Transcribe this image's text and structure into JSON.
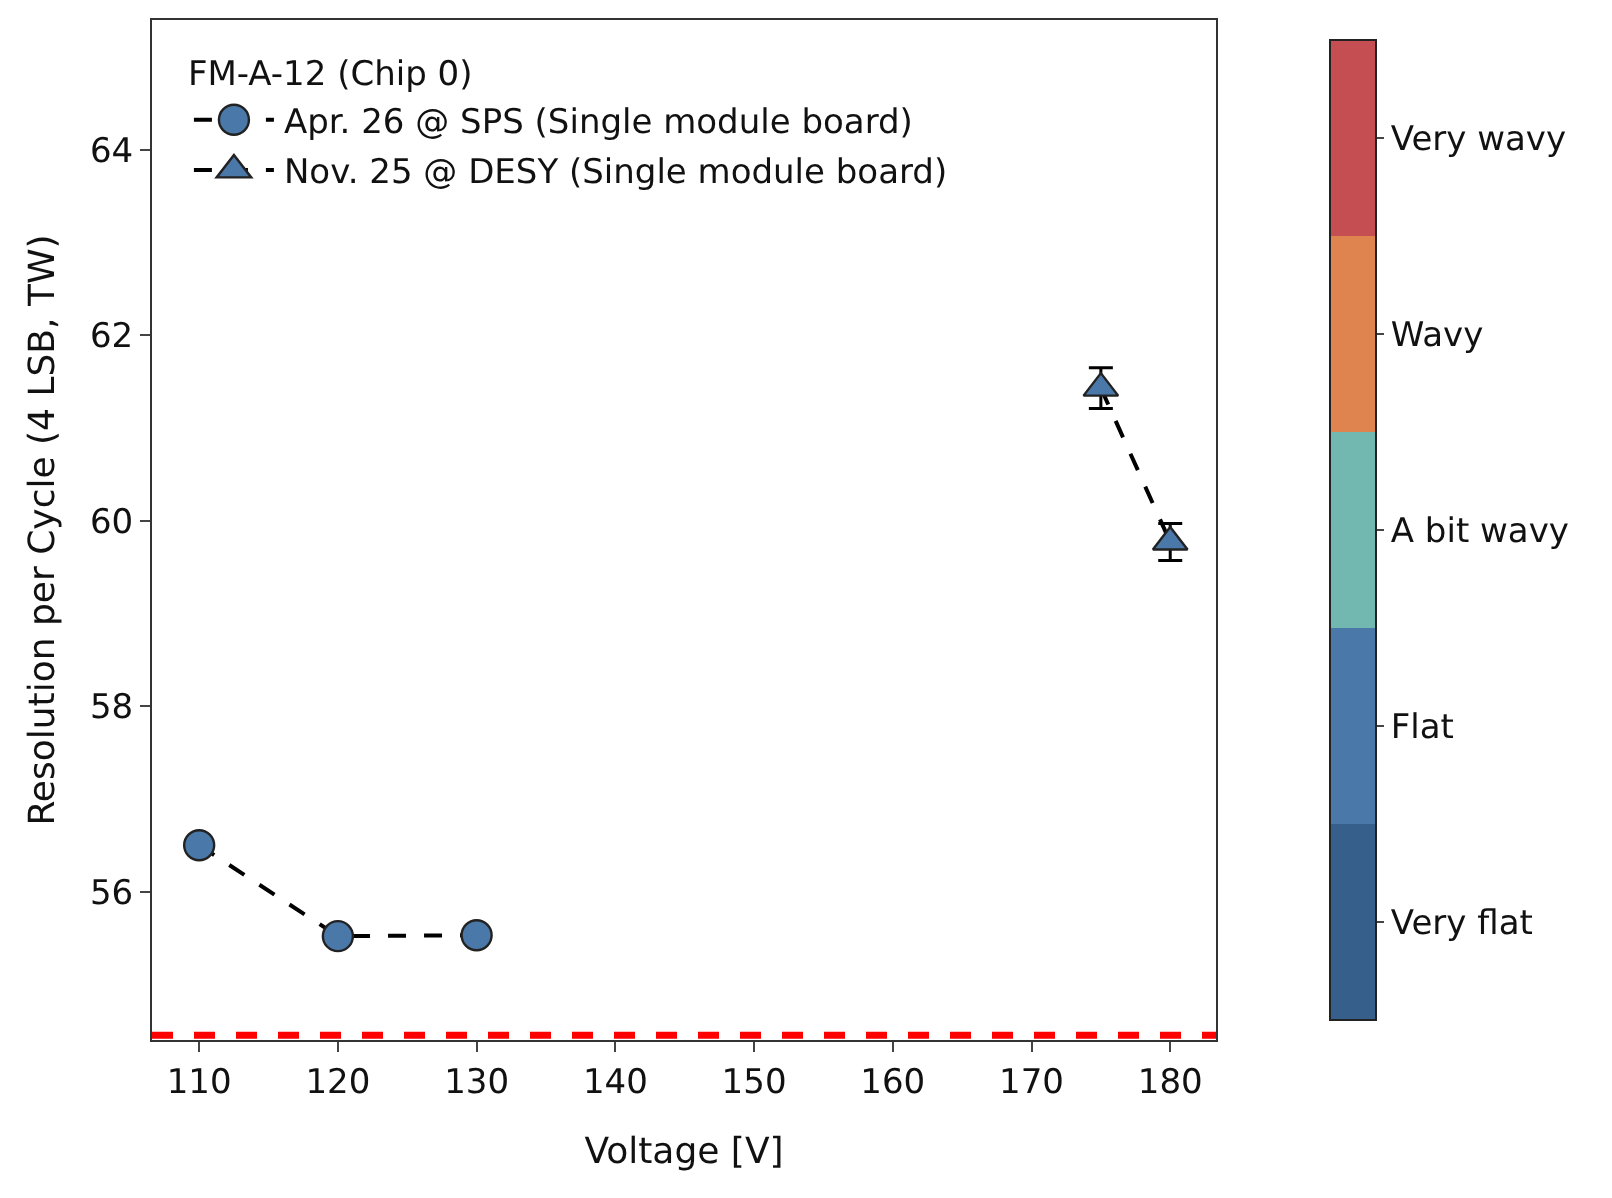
{
  "chart_data": {
    "type": "line",
    "xlabel": "Voltage [V]",
    "ylabel": "Resolution per Cycle (4 LSB, TW)",
    "legend_title": "FM-A-12 (Chip 0)",
    "legend": "top left",
    "xlim": [
      106.6,
      183.3
    ],
    "xticks": [
      110,
      120,
      130,
      140,
      150,
      160,
      170,
      180
    ],
    "ylim": [
      54.4,
      65.4
    ],
    "yticks": [
      56,
      58,
      60,
      62,
      64
    ],
    "grid": false,
    "line_style": "dashed",
    "clim": [
      0,
      5
    ],
    "cticks": [
      {
        "value": 0.5,
        "label": "Very flat"
      },
      {
        "value": 1.5,
        "label": "Flat"
      },
      {
        "value": 2.5,
        "label": "A bit wavy"
      },
      {
        "value": 3.5,
        "label": "Wavy"
      },
      {
        "value": 4.5,
        "label": "Very wavy"
      }
    ],
    "series": [
      {
        "name": "Apr. 26 @ SPS (Single module board)",
        "color": "#000000",
        "marker": "circle",
        "x": [
          110,
          120,
          130
        ],
        "values": [
          56.5,
          55.52,
          55.53
        ],
        "colors": [
          "#4a78a8",
          "#4a78a8",
          "#4a78a8"
        ]
      },
      {
        "name": "Nov. 25 @ DESY (Single module board)",
        "color": "#000000",
        "marker": "triangle",
        "x": [
          175,
          180
        ],
        "values": [
          61.43,
          59.77
        ],
        "colors": [
          "#4a78a8",
          "#4a78a8"
        ],
        "errors": [
          0.22,
          0.2
        ]
      }
    ],
    "ref_lines": [
      {
        "axis": "y",
        "value": 54.45,
        "color": "#ff0000",
        "line_style": "dashed"
      }
    ]
  }
}
